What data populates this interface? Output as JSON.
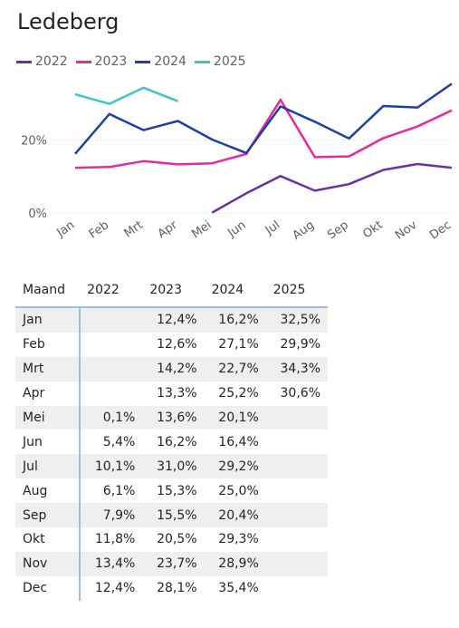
{
  "title": "Ledeberg",
  "chart_data": {
    "type": "line",
    "categories": [
      "Jan",
      "Feb",
      "Mrt",
      "Apr",
      "Mei",
      "Jun",
      "Jul",
      "Aug",
      "Sep",
      "Okt",
      "Nov",
      "Dec"
    ],
    "series": [
      {
        "name": "2022",
        "color": "#6b2fa8",
        "values": [
          null,
          null,
          null,
          null,
          0.1,
          5.4,
          10.1,
          6.1,
          7.9,
          11.8,
          13.4,
          12.4
        ]
      },
      {
        "name": "2023",
        "color": "#e8289b",
        "values": [
          12.4,
          12.6,
          14.2,
          13.3,
          13.6,
          16.2,
          31.0,
          15.3,
          15.5,
          20.5,
          23.7,
          28.1
        ]
      },
      {
        "name": "2024",
        "color": "#1f3fa3",
        "values": [
          16.2,
          27.1,
          22.7,
          25.2,
          20.1,
          16.4,
          29.2,
          25.0,
          20.4,
          29.3,
          28.9,
          35.4
        ]
      },
      {
        "name": "2025",
        "color": "#3bc6c6",
        "values": [
          32.5,
          29.9,
          34.3,
          30.6,
          null,
          null,
          null,
          null,
          null,
          null,
          null,
          null
        ]
      }
    ],
    "y_ticks": [
      "0%",
      "20%"
    ],
    "ylim": [
      0,
      36
    ],
    "grid": true,
    "legend": "top-left"
  },
  "table": {
    "headers": [
      "Maand",
      "2022",
      "2023",
      "2024",
      "2025"
    ],
    "rows": [
      [
        "Jan",
        "",
        "12,4%",
        "16,2%",
        "32,5%"
      ],
      [
        "Feb",
        "",
        "12,6%",
        "27,1%",
        "29,9%"
      ],
      [
        "Mrt",
        "",
        "14,2%",
        "22,7%",
        "34,3%"
      ],
      [
        "Apr",
        "",
        "13,3%",
        "25,2%",
        "30,6%"
      ],
      [
        "Mei",
        "0,1%",
        "13,6%",
        "20,1%",
        ""
      ],
      [
        "Jun",
        "5,4%",
        "16,2%",
        "16,4%",
        ""
      ],
      [
        "Jul",
        "10,1%",
        "31,0%",
        "29,2%",
        ""
      ],
      [
        "Aug",
        "6,1%",
        "15,3%",
        "25,0%",
        ""
      ],
      [
        "Sep",
        "7,9%",
        "15,5%",
        "20,4%",
        ""
      ],
      [
        "Okt",
        "11,8%",
        "20,5%",
        "29,3%",
        ""
      ],
      [
        "Nov",
        "13,4%",
        "23,7%",
        "28,9%",
        ""
      ],
      [
        "Dec",
        "12,4%",
        "28,1%",
        "35,4%",
        ""
      ]
    ]
  }
}
